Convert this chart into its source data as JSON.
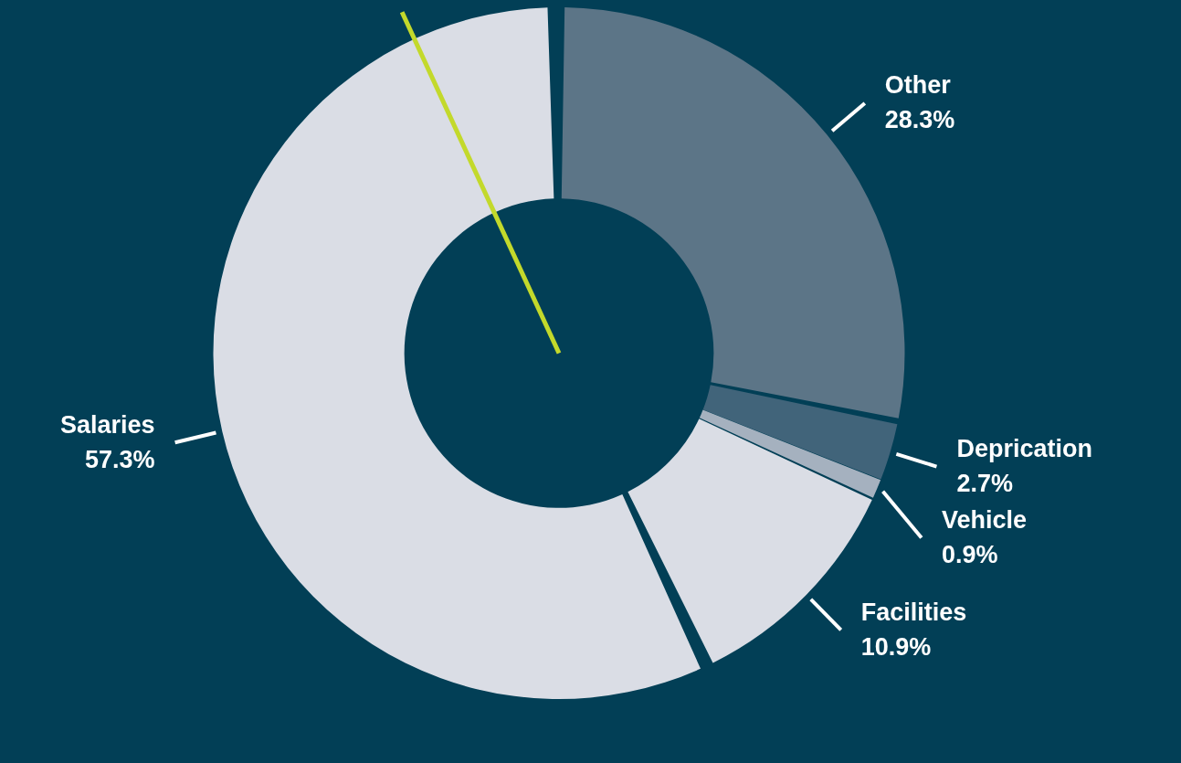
{
  "chart_data": {
    "type": "donut",
    "categories": [
      "Other",
      "Deprication",
      "Vehicle",
      "Facilities",
      "Salaries"
    ],
    "values": [
      28.3,
      2.7,
      0.9,
      10.9,
      57.3
    ],
    "value_labels": [
      "28.3%",
      "2.7%",
      "0.9%",
      "10.9%",
      "57.3%"
    ],
    "colors": [
      "#5c7587",
      "#41647a",
      "#a5b1bf",
      "#dadde5",
      "#dadde5"
    ],
    "needle": "Salaries",
    "legend": false
  }
}
